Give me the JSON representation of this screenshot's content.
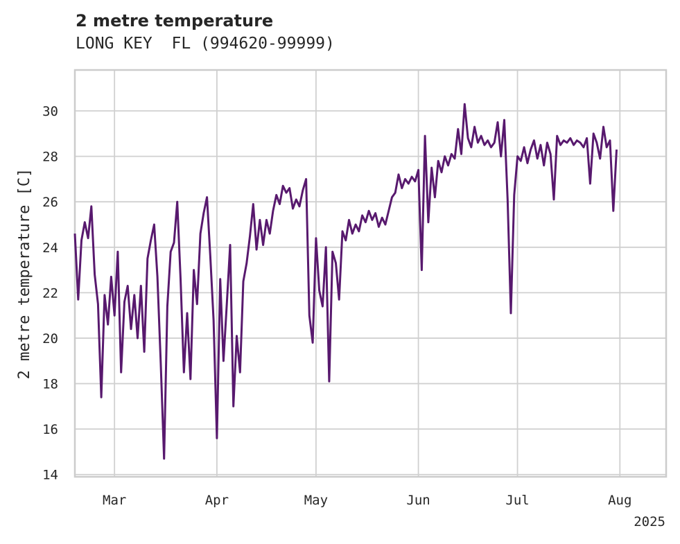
{
  "chart_data": {
    "type": "line",
    "title": "2 metre temperature",
    "subtitle": "LONG KEY  FL (994620-99999)",
    "ylabel": "2 metre temperature [C]",
    "xlabel": "",
    "year_label": "2025",
    "grid": true,
    "ylim": [
      13.9,
      31.8
    ],
    "xlim": [
      "2025-02-17",
      "2025-08-15"
    ],
    "yticks": [
      14,
      16,
      18,
      20,
      22,
      24,
      26,
      28,
      30
    ],
    "xticks": [
      {
        "date": "2025-03-01",
        "label": "Mar"
      },
      {
        "date": "2025-04-01",
        "label": "Apr"
      },
      {
        "date": "2025-05-01",
        "label": "May"
      },
      {
        "date": "2025-06-01",
        "label": "Jun"
      },
      {
        "date": "2025-07-01",
        "label": "Jul"
      },
      {
        "date": "2025-08-01",
        "label": "Aug"
      }
    ],
    "series": [
      {
        "color": "#58196e",
        "points": [
          [
            "2025-02-17",
            24.6
          ],
          [
            "2025-02-18",
            21.7
          ],
          [
            "2025-02-19",
            24.3
          ],
          [
            "2025-02-20",
            25.1
          ],
          [
            "2025-02-21",
            24.4
          ],
          [
            "2025-02-22",
            25.8
          ],
          [
            "2025-02-23",
            22.8
          ],
          [
            "2025-02-24",
            21.5
          ],
          [
            "2025-02-25",
            17.4
          ],
          [
            "2025-02-26",
            21.9
          ],
          [
            "2025-02-27",
            20.6
          ],
          [
            "2025-02-28",
            22.7
          ],
          [
            "2025-03-01",
            21.0
          ],
          [
            "2025-03-02",
            23.8
          ],
          [
            "2025-03-03",
            18.5
          ],
          [
            "2025-03-04",
            21.6
          ],
          [
            "2025-03-05",
            22.3
          ],
          [
            "2025-03-06",
            20.4
          ],
          [
            "2025-03-07",
            21.9
          ],
          [
            "2025-03-08",
            20.0
          ],
          [
            "2025-03-09",
            22.3
          ],
          [
            "2025-03-10",
            19.4
          ],
          [
            "2025-03-11",
            23.5
          ],
          [
            "2025-03-12",
            24.3
          ],
          [
            "2025-03-13",
            25.0
          ],
          [
            "2025-03-14",
            22.7
          ],
          [
            "2025-03-15",
            18.9
          ],
          [
            "2025-03-16",
            14.7
          ],
          [
            "2025-03-17",
            21.4
          ],
          [
            "2025-03-18",
            23.8
          ],
          [
            "2025-03-19",
            24.2
          ],
          [
            "2025-03-20",
            26.0
          ],
          [
            "2025-03-21",
            22.6
          ],
          [
            "2025-03-22",
            18.5
          ],
          [
            "2025-03-23",
            21.1
          ],
          [
            "2025-03-24",
            18.2
          ],
          [
            "2025-03-25",
            23.0
          ],
          [
            "2025-03-26",
            21.5
          ],
          [
            "2025-03-27",
            24.6
          ],
          [
            "2025-03-28",
            25.5
          ],
          [
            "2025-03-29",
            26.2
          ],
          [
            "2025-03-30",
            23.6
          ],
          [
            "2025-03-31",
            20.8
          ],
          [
            "2025-04-01",
            15.6
          ],
          [
            "2025-04-02",
            22.6
          ],
          [
            "2025-04-03",
            19.0
          ],
          [
            "2025-04-04",
            21.5
          ],
          [
            "2025-04-05",
            24.1
          ],
          [
            "2025-04-06",
            17.0
          ],
          [
            "2025-04-07",
            20.1
          ],
          [
            "2025-04-08",
            18.5
          ],
          [
            "2025-04-09",
            22.5
          ],
          [
            "2025-04-10",
            23.3
          ],
          [
            "2025-04-11",
            24.5
          ],
          [
            "2025-04-12",
            25.9
          ],
          [
            "2025-04-13",
            23.9
          ],
          [
            "2025-04-14",
            25.2
          ],
          [
            "2025-04-15",
            24.1
          ],
          [
            "2025-04-16",
            25.2
          ],
          [
            "2025-04-17",
            24.6
          ],
          [
            "2025-04-18",
            25.6
          ],
          [
            "2025-04-19",
            26.3
          ],
          [
            "2025-04-20",
            25.9
          ],
          [
            "2025-04-21",
            26.7
          ],
          [
            "2025-04-22",
            26.4
          ],
          [
            "2025-04-23",
            26.6
          ],
          [
            "2025-04-24",
            25.7
          ],
          [
            "2025-04-25",
            26.1
          ],
          [
            "2025-04-26",
            25.8
          ],
          [
            "2025-04-27",
            26.5
          ],
          [
            "2025-04-28",
            27.0
          ],
          [
            "2025-04-29",
            21.0
          ],
          [
            "2025-04-30",
            19.8
          ],
          [
            "2025-05-01",
            24.4
          ],
          [
            "2025-05-02",
            22.1
          ],
          [
            "2025-05-03",
            21.4
          ],
          [
            "2025-05-04",
            24.0
          ],
          [
            "2025-05-05",
            18.1
          ],
          [
            "2025-05-06",
            23.8
          ],
          [
            "2025-05-07",
            23.3
          ],
          [
            "2025-05-08",
            21.7
          ],
          [
            "2025-05-09",
            24.7
          ],
          [
            "2025-05-10",
            24.3
          ],
          [
            "2025-05-11",
            25.2
          ],
          [
            "2025-05-12",
            24.6
          ],
          [
            "2025-05-13",
            25.0
          ],
          [
            "2025-05-14",
            24.7
          ],
          [
            "2025-05-15",
            25.4
          ],
          [
            "2025-05-16",
            25.1
          ],
          [
            "2025-05-17",
            25.6
          ],
          [
            "2025-05-18",
            25.2
          ],
          [
            "2025-05-19",
            25.5
          ],
          [
            "2025-05-20",
            24.9
          ],
          [
            "2025-05-21",
            25.3
          ],
          [
            "2025-05-22",
            25.0
          ],
          [
            "2025-05-23",
            25.6
          ],
          [
            "2025-05-24",
            26.2
          ],
          [
            "2025-05-25",
            26.4
          ],
          [
            "2025-05-26",
            27.2
          ],
          [
            "2025-05-27",
            26.6
          ],
          [
            "2025-05-28",
            27.0
          ],
          [
            "2025-05-29",
            26.8
          ],
          [
            "2025-05-30",
            27.1
          ],
          [
            "2025-05-31",
            26.9
          ],
          [
            "2025-06-01",
            27.4
          ],
          [
            "2025-06-02",
            23.0
          ],
          [
            "2025-06-03",
            28.9
          ],
          [
            "2025-06-04",
            25.1
          ],
          [
            "2025-06-05",
            27.5
          ],
          [
            "2025-06-06",
            26.2
          ],
          [
            "2025-06-07",
            27.8
          ],
          [
            "2025-06-08",
            27.3
          ],
          [
            "2025-06-09",
            28.0
          ],
          [
            "2025-06-10",
            27.6
          ],
          [
            "2025-06-11",
            28.1
          ],
          [
            "2025-06-12",
            27.9
          ],
          [
            "2025-06-13",
            29.2
          ],
          [
            "2025-06-14",
            28.1
          ],
          [
            "2025-06-15",
            30.3
          ],
          [
            "2025-06-16",
            28.8
          ],
          [
            "2025-06-17",
            28.4
          ],
          [
            "2025-06-18",
            29.3
          ],
          [
            "2025-06-19",
            28.6
          ],
          [
            "2025-06-20",
            28.9
          ],
          [
            "2025-06-21",
            28.5
          ],
          [
            "2025-06-22",
            28.7
          ],
          [
            "2025-06-23",
            28.4
          ],
          [
            "2025-06-24",
            28.6
          ],
          [
            "2025-06-25",
            29.5
          ],
          [
            "2025-06-26",
            28.0
          ],
          [
            "2025-06-27",
            29.6
          ],
          [
            "2025-06-28",
            26.1
          ],
          [
            "2025-06-29",
            21.1
          ],
          [
            "2025-06-30",
            26.3
          ],
          [
            "2025-07-01",
            28.0
          ],
          [
            "2025-07-02",
            27.8
          ],
          [
            "2025-07-03",
            28.4
          ],
          [
            "2025-07-04",
            27.7
          ],
          [
            "2025-07-05",
            28.3
          ],
          [
            "2025-07-06",
            28.7
          ],
          [
            "2025-07-07",
            27.9
          ],
          [
            "2025-07-08",
            28.5
          ],
          [
            "2025-07-09",
            27.6
          ],
          [
            "2025-07-10",
            28.6
          ],
          [
            "2025-07-11",
            28.1
          ],
          [
            "2025-07-12",
            26.1
          ],
          [
            "2025-07-13",
            28.9
          ],
          [
            "2025-07-14",
            28.5
          ],
          [
            "2025-07-15",
            28.7
          ],
          [
            "2025-07-16",
            28.6
          ],
          [
            "2025-07-17",
            28.8
          ],
          [
            "2025-07-18",
            28.5
          ],
          [
            "2025-07-19",
            28.7
          ],
          [
            "2025-07-20",
            28.6
          ],
          [
            "2025-07-21",
            28.4
          ],
          [
            "2025-07-22",
            28.8
          ],
          [
            "2025-07-23",
            26.8
          ],
          [
            "2025-07-24",
            29.0
          ],
          [
            "2025-07-25",
            28.6
          ],
          [
            "2025-07-26",
            27.9
          ],
          [
            "2025-07-27",
            29.3
          ],
          [
            "2025-07-28",
            28.4
          ],
          [
            "2025-07-29",
            28.7
          ],
          [
            "2025-07-30",
            25.6
          ],
          [
            "2025-07-31",
            28.3
          ]
        ]
      }
    ]
  }
}
